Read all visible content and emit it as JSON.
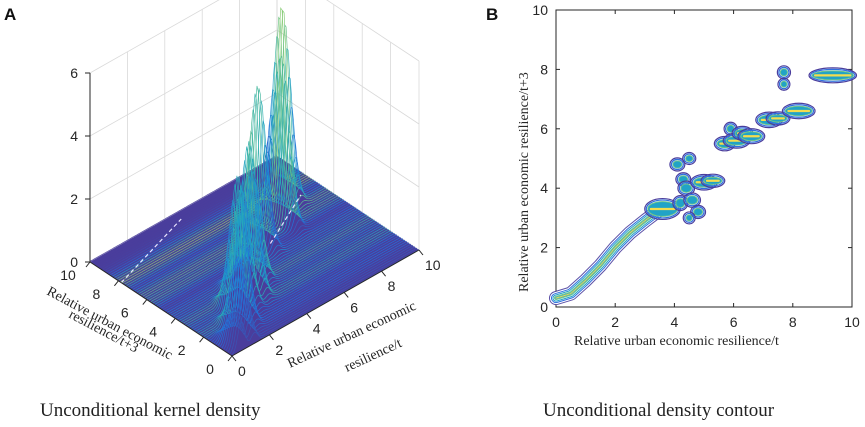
{
  "colors": {
    "surface_low": "#4a3d9c",
    "surface_mid": "#21a3c7",
    "surface_high": "#f4dc4e",
    "axis": "#262626",
    "grid": "#d9d9d9"
  },
  "chart_data": [
    {
      "panel": "A",
      "type": "surface3d",
      "caption": "Unconditional kernel density",
      "x_label_line1": "Relative urban economic",
      "x_label_line2": "resilience/t",
      "y_label_line1": "Relative urban economic",
      "y_label_line2": "resilience/t+3",
      "xlim": [
        0,
        10
      ],
      "ylim": [
        0,
        10
      ],
      "zlim": [
        0,
        6
      ],
      "x_ticks": [
        "0",
        "2",
        "4",
        "6",
        "8",
        "10"
      ],
      "y_ticks": [
        "0",
        "2",
        "4",
        "6",
        "8",
        "10"
      ],
      "z_ticks": [
        "0",
        "2",
        "4",
        "6"
      ],
      "ridge_peaks": [
        {
          "x": 0.5,
          "y": 0.4,
          "z": 1.2
        },
        {
          "x": 1.2,
          "y": 1.1,
          "z": 2.4
        },
        {
          "x": 2.0,
          "y": 2.2,
          "z": 4.4
        },
        {
          "x": 2.8,
          "y": 3.0,
          "z": 3.5
        },
        {
          "x": 3.5,
          "y": 3.4,
          "z": 4.6
        },
        {
          "x": 4.3,
          "y": 4.2,
          "z": 3.2
        },
        {
          "x": 5.8,
          "y": 5.8,
          "z": 4.9
        },
        {
          "x": 7.4,
          "y": 6.3,
          "z": 5.2
        },
        {
          "x": 8.6,
          "y": 7.8,
          "z": 5.9
        }
      ]
    },
    {
      "panel": "B",
      "type": "contour",
      "caption": "Unconditional density contour",
      "xlabel": "Relative urban economic resilience/t",
      "ylabel_line1": "Relative urban economic resilience/t+3",
      "xlim": [
        0,
        10
      ],
      "ylim": [
        0,
        10
      ],
      "x_ticks": [
        "0",
        "2",
        "4",
        "6",
        "8",
        "10"
      ],
      "y_ticks": [
        "0",
        "2",
        "4",
        "6",
        "8",
        "10"
      ],
      "ridge": [
        [
          0,
          0.3
        ],
        [
          0.5,
          0.45
        ],
        [
          1.0,
          0.9
        ],
        [
          1.5,
          1.4
        ],
        [
          2.0,
          2.0
        ],
        [
          2.5,
          2.5
        ],
        [
          3.0,
          2.9
        ],
        [
          3.4,
          3.2
        ]
      ],
      "blobs": [
        {
          "x": 3.6,
          "y": 3.3,
          "w": 0.5,
          "h": 0.25
        },
        {
          "x": 4.1,
          "y": 4.8,
          "w": 0.15,
          "h": 0.12
        },
        {
          "x": 4.5,
          "y": 5.0,
          "w": 0.12,
          "h": 0.1
        },
        {
          "x": 4.3,
          "y": 4.3,
          "w": 0.15,
          "h": 0.12
        },
        {
          "x": 4.4,
          "y": 4.0,
          "w": 0.18,
          "h": 0.14
        },
        {
          "x": 4.2,
          "y": 3.5,
          "w": 0.15,
          "h": 0.15
        },
        {
          "x": 4.6,
          "y": 3.6,
          "w": 0.18,
          "h": 0.14
        },
        {
          "x": 4.8,
          "y": 3.2,
          "w": 0.15,
          "h": 0.12
        },
        {
          "x": 4.5,
          "y": 3.0,
          "w": 0.1,
          "h": 0.1
        },
        {
          "x": 5.0,
          "y": 4.2,
          "w": 0.35,
          "h": 0.16
        },
        {
          "x": 5.3,
          "y": 4.25,
          "w": 0.3,
          "h": 0.12
        },
        {
          "x": 5.7,
          "y": 5.5,
          "w": 0.25,
          "h": 0.14
        },
        {
          "x": 5.9,
          "y": 6.0,
          "w": 0.12,
          "h": 0.12
        },
        {
          "x": 6.1,
          "y": 5.6,
          "w": 0.35,
          "h": 0.15
        },
        {
          "x": 6.3,
          "y": 5.85,
          "w": 0.25,
          "h": 0.13
        },
        {
          "x": 6.6,
          "y": 5.75,
          "w": 0.35,
          "h": 0.15
        },
        {
          "x": 7.2,
          "y": 6.3,
          "w": 0.35,
          "h": 0.16
        },
        {
          "x": 7.5,
          "y": 6.35,
          "w": 0.3,
          "h": 0.12
        },
        {
          "x": 7.7,
          "y": 7.9,
          "w": 0.12,
          "h": 0.12
        },
        {
          "x": 7.7,
          "y": 7.5,
          "w": 0.1,
          "h": 0.1
        },
        {
          "x": 8.2,
          "y": 6.6,
          "w": 0.45,
          "h": 0.16
        },
        {
          "x": 9.35,
          "y": 7.8,
          "w": 0.7,
          "h": 0.15
        }
      ]
    }
  ]
}
